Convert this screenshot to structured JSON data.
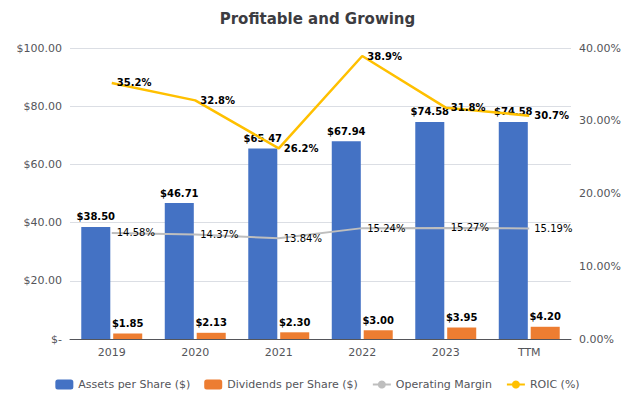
{
  "chart_data": {
    "type": "bar",
    "title": "Profitable and Growing",
    "categories": [
      "2019",
      "2020",
      "2021",
      "2022",
      "2023",
      "TTM"
    ],
    "series": [
      {
        "name": "Assets per Share ($)",
        "type": "bar",
        "color": "#4472C4",
        "values": [
          38.5,
          46.71,
          65.47,
          67.94,
          74.58,
          74.58
        ],
        "value_labels": [
          "$38.50",
          "$46.71",
          "$65.47",
          "$67.94",
          "$74.58",
          "$74.58"
        ]
      },
      {
        "name": "Dividends per Share ($)",
        "type": "bar",
        "color": "#ED7D31",
        "values": [
          1.85,
          2.13,
          2.3,
          3.0,
          3.95,
          4.2
        ],
        "value_labels": [
          "$1.85",
          "$2.13",
          "$2.30",
          "$3.00",
          "$3.95",
          "$4.20"
        ]
      },
      {
        "name": "Operating Margin",
        "type": "line",
        "axis": "y2",
        "color": "#BEBEBE",
        "values": [
          14.58,
          14.37,
          13.84,
          15.24,
          15.27,
          15.19
        ],
        "value_labels": [
          "14.58%",
          "14.37%",
          "13.84%",
          "15.24%",
          "15.27%",
          "15.19%"
        ]
      },
      {
        "name": "ROIC (%)",
        "type": "line",
        "axis": "y2",
        "color": "#FFC000",
        "values": [
          35.2,
          32.8,
          26.2,
          38.9,
          31.8,
          30.7
        ],
        "value_labels": [
          "35.2%",
          "32.8%",
          "26.2%",
          "38.9%",
          "31.8%",
          "30.7%"
        ]
      }
    ],
    "ylim": [
      0,
      100
    ],
    "yticks": [
      {
        "value": 0,
        "label": "$-"
      },
      {
        "value": 20,
        "label": "$20.00"
      },
      {
        "value": 40,
        "label": "$40.00"
      },
      {
        "value": 60,
        "label": "$60.00"
      },
      {
        "value": 80,
        "label": "$80.00"
      },
      {
        "value": 100,
        "label": "$100.00"
      }
    ],
    "y2lim": [
      0,
      40
    ],
    "y2ticks": [
      {
        "value": 0,
        "label": "0.00%"
      },
      {
        "value": 10,
        "label": "10.00%"
      },
      {
        "value": 20,
        "label": "20.00%"
      },
      {
        "value": 30,
        "label": "30.00%"
      },
      {
        "value": 40,
        "label": "40.00%"
      }
    ],
    "grid": true,
    "legend": "bottom",
    "data_labels": true
  }
}
